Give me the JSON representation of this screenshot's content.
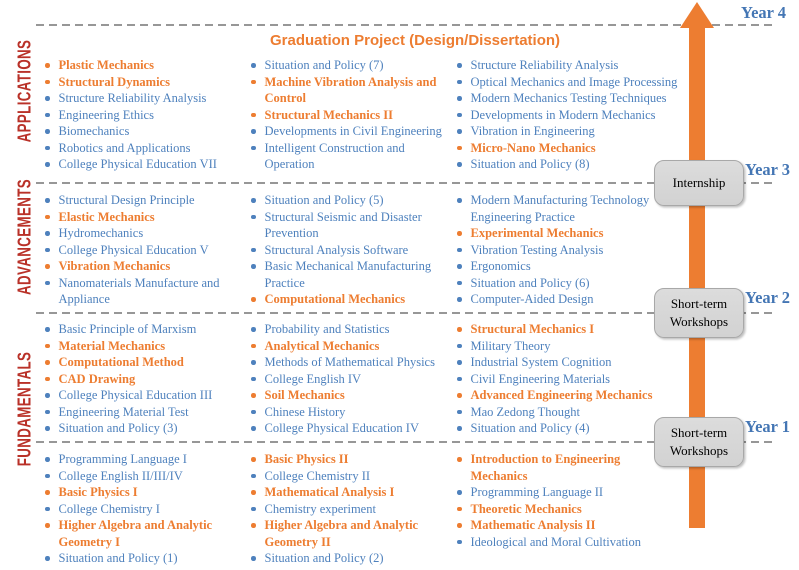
{
  "diagram": {
    "title": "Graduation Project (Design/Dissertation)",
    "stages": [
      {
        "label": "APPLICATIONS"
      },
      {
        "label": "ADVANCEMENTS"
      },
      {
        "label": "FUNDAMENTALS"
      }
    ],
    "years": [
      {
        "label": "Year 4"
      },
      {
        "label": "Year 3"
      },
      {
        "label": "Year 2"
      },
      {
        "label": "Year 1"
      }
    ],
    "milestones": [
      {
        "label": "Internship"
      },
      {
        "label": "Short-term\nWorkshops"
      },
      {
        "label": "Short-term\nWorkshops"
      }
    ],
    "colors": {
      "course_blue": "#4e81bd",
      "highlight_orange": "#ed7d31",
      "stage_red": "#b93128",
      "year_label_blue": "#4476b4",
      "arrow_orange": "#ed7d31",
      "milestone_gray": "#d6d6d6",
      "divider_gray": "#979797"
    },
    "sections": [
      {
        "year_label": "Year 4",
        "columns": [
          {
            "items": [
              {
                "text": "Plastic Mechanics",
                "highlight": true
              },
              {
                "text": "Structural Dynamics",
                "highlight": true
              },
              {
                "text": "Structure Reliability Analysis",
                "highlight": false
              },
              {
                "text": "Engineering Ethics",
                "highlight": false
              },
              {
                "text": "Biomechanics",
                "highlight": false
              },
              {
                "text": "Robotics and Applications",
                "highlight": false
              },
              {
                "text": "College Physical Education VII",
                "highlight": false
              }
            ]
          },
          {
            "items": [
              {
                "text": "Situation and Policy (7)",
                "highlight": false
              },
              {
                "text": "Machine Vibration Analysis and\nControl",
                "highlight": true
              },
              {
                "text": "Structural Mechanics II",
                "highlight": true
              },
              {
                "text": "Developments in Civil Engineering",
                "highlight": false
              },
              {
                "text": "Intelligent Construction and\nOperation",
                "highlight": false
              }
            ]
          },
          {
            "items": [
              {
                "text": "Structure Reliability Analysis",
                "highlight": false
              },
              {
                "text": "Optical Mechanics and Image Processing",
                "highlight": false
              },
              {
                "text": "Modern Mechanics Testing Techniques",
                "highlight": false
              },
              {
                "text": "Developments in Modern Mechanics",
                "highlight": false
              },
              {
                "text": "Vibration in Engineering",
                "highlight": false
              },
              {
                "text": "Micro-Nano Mechanics",
                "highlight": true
              },
              {
                "text": "Situation and Policy (8)",
                "highlight": false
              }
            ]
          }
        ]
      },
      {
        "year_label": "Year 3",
        "columns": [
          {
            "items": [
              {
                "text": "Structural Design Principle",
                "highlight": false
              },
              {
                "text": "Elastic Mechanics",
                "highlight": true
              },
              {
                "text": "Hydromechanics",
                "highlight": false
              },
              {
                "text": "College Physical Education V",
                "highlight": false
              },
              {
                "text": "Vibration Mechanics",
                "highlight": true
              },
              {
                "text": "Nanomaterials Manufacture and\nAppliance",
                "highlight": false
              }
            ]
          },
          {
            "items": [
              {
                "text": "Situation and Policy (5)",
                "highlight": false
              },
              {
                "text": "Structural Seismic and Disaster\nPrevention",
                "highlight": false
              },
              {
                "text": "Structural Analysis Software",
                "highlight": false
              },
              {
                "text": "Basic Mechanical Manufacturing\nPractice",
                "highlight": false
              },
              {
                "text": "Computational Mechanics",
                "highlight": true
              }
            ]
          },
          {
            "items": [
              {
                "text": "Modern Manufacturing Technology\nEngineering Practice",
                "highlight": false
              },
              {
                "text": "Experimental Mechanics",
                "highlight": true
              },
              {
                "text": "Vibration Testing Analysis",
                "highlight": false
              },
              {
                "text": "Ergonomics",
                "highlight": false
              },
              {
                "text": "Situation and Policy (6)",
                "highlight": false
              },
              {
                "text": "Computer-Aided Design",
                "highlight": false
              }
            ]
          }
        ]
      },
      {
        "year_label": "Year 2",
        "columns": [
          {
            "items": [
              {
                "text": "Basic Principle of Marxism",
                "highlight": false
              },
              {
                "text": "Material Mechanics",
                "highlight": true
              },
              {
                "text": "Computational Method",
                "highlight": true
              },
              {
                "text": "CAD Drawing",
                "highlight": true
              },
              {
                "text": "College Physical Education III",
                "highlight": false
              },
              {
                "text": "Engineering Material Test",
                "highlight": false
              },
              {
                "text": "Situation and Policy (3)",
                "highlight": false
              }
            ]
          },
          {
            "items": [
              {
                "text": "Probability and Statistics",
                "highlight": false
              },
              {
                "text": "Analytical Mechanics",
                "highlight": true
              },
              {
                "text": "Methods of Mathematical Physics",
                "highlight": false
              },
              {
                "text": "College English IV",
                "highlight": false
              },
              {
                "text": "Soil Mechanics",
                "highlight": true
              },
              {
                "text": "Chinese History",
                "highlight": false
              },
              {
                "text": "College Physical Education IV",
                "highlight": false
              }
            ]
          },
          {
            "items": [
              {
                "text": "Structural Mechanics I",
                "highlight": true
              },
              {
                "text": "Military Theory",
                "highlight": false
              },
              {
                "text": "Industrial System Cognition",
                "highlight": false
              },
              {
                "text": "Civil Engineering Materials",
                "highlight": false
              },
              {
                "text": "Advanced Engineering Mechanics",
                "highlight": true
              },
              {
                "text": "Mao Zedong Thought",
                "highlight": false
              },
              {
                "text": "Situation and Policy (4)",
                "highlight": false
              }
            ]
          }
        ]
      },
      {
        "year_label": "Year 1",
        "columns": [
          {
            "items": [
              {
                "text": "Programming Language I",
                "highlight": false
              },
              {
                "text": "College English II/III/IV",
                "highlight": false
              },
              {
                "text": "Basic Physics I",
                "highlight": true
              },
              {
                "text": "College Chemistry I",
                "highlight": false
              },
              {
                "text": "Higher Algebra and Analytic\nGeometry I",
                "highlight": true
              },
              {
                "text": "Situation and Policy (1)",
                "highlight": false
              }
            ]
          },
          {
            "items": [
              {
                "text": "Basic Physics II",
                "highlight": true
              },
              {
                "text": "College Chemistry II",
                "highlight": false
              },
              {
                "text": "Mathematical Analysis I",
                "highlight": true
              },
              {
                "text": "Chemistry experiment",
                "highlight": false
              },
              {
                "text": "Higher Algebra and Analytic\nGeometry II",
                "highlight": true
              },
              {
                "text": "Situation and Policy (2)",
                "highlight": false
              }
            ]
          },
          {
            "items": [
              {
                "text": "Introduction to Engineering\nMechanics",
                "highlight": true
              },
              {
                "text": "Programming Language II",
                "highlight": false
              },
              {
                "text": "Theoretic Mechanics",
                "highlight": true
              },
              {
                "text": "Mathematic Analysis II",
                "highlight": true
              },
              {
                "text": "Ideological and Moral Cultivation",
                "highlight": false
              }
            ]
          }
        ]
      }
    ]
  }
}
